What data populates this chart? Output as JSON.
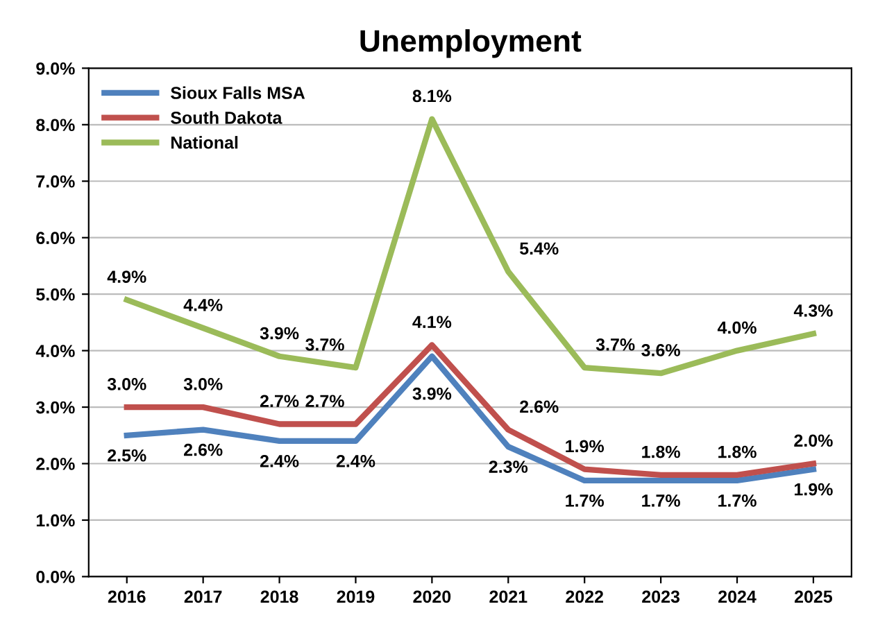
{
  "chart_data": {
    "type": "line",
    "title": "Unemployment",
    "categories": [
      "2016",
      "2017",
      "2018",
      "2019",
      "2020",
      "2021",
      "2022",
      "2023",
      "2024",
      "2025"
    ],
    "series": [
      {
        "name": "Sioux Falls MSA",
        "color": "#4f81bd",
        "values": [
          2.5,
          2.6,
          2.4,
          2.4,
          3.9,
          2.3,
          1.7,
          1.7,
          1.7,
          1.9
        ],
        "value_labels": [
          "2.5%",
          "2.6%",
          "2.4%",
          "2.4%",
          "3.9%",
          "2.3%",
          "1.7%",
          "1.7%",
          "1.7%",
          "1.9%"
        ]
      },
      {
        "name": "South Dakota",
        "color": "#c0504d",
        "values": [
          3.0,
          3.0,
          2.7,
          2.7,
          4.1,
          2.6,
          1.9,
          1.8,
          1.8,
          2.0
        ],
        "value_labels": [
          "3.0%",
          "3.0%",
          "2.7%",
          "2.7%",
          "4.1%",
          "2.6%",
          "1.9%",
          "1.8%",
          "1.8%",
          "2.0%"
        ]
      },
      {
        "name": "National",
        "color": "#9bbb59",
        "values": [
          4.9,
          4.4,
          3.9,
          3.7,
          8.1,
          5.4,
          3.7,
          3.6,
          4.0,
          4.3
        ],
        "value_labels": [
          "4.9%",
          "4.4%",
          "3.9%",
          "3.7%",
          "8.1%",
          "5.4%",
          "3.7%",
          "3.6%",
          "4.0%",
          "4.3%"
        ]
      }
    ],
    "ylim": [
      0,
      9
    ],
    "yticks": [
      {
        "value": 0,
        "label": "0.0%"
      },
      {
        "value": 1,
        "label": "1.0%"
      },
      {
        "value": 2,
        "label": "2.0%"
      },
      {
        "value": 3,
        "label": "3.0%"
      },
      {
        "value": 4,
        "label": "4.0%"
      },
      {
        "value": 5,
        "label": "5.0%"
      },
      {
        "value": 6,
        "label": "6.0%"
      },
      {
        "value": 7,
        "label": "7.0%"
      },
      {
        "value": 8,
        "label": "8.0%"
      },
      {
        "value": 9,
        "label": "9.0%"
      }
    ],
    "grid": "y",
    "legend": "top left",
    "marker": "none",
    "line_style": "solid"
  }
}
